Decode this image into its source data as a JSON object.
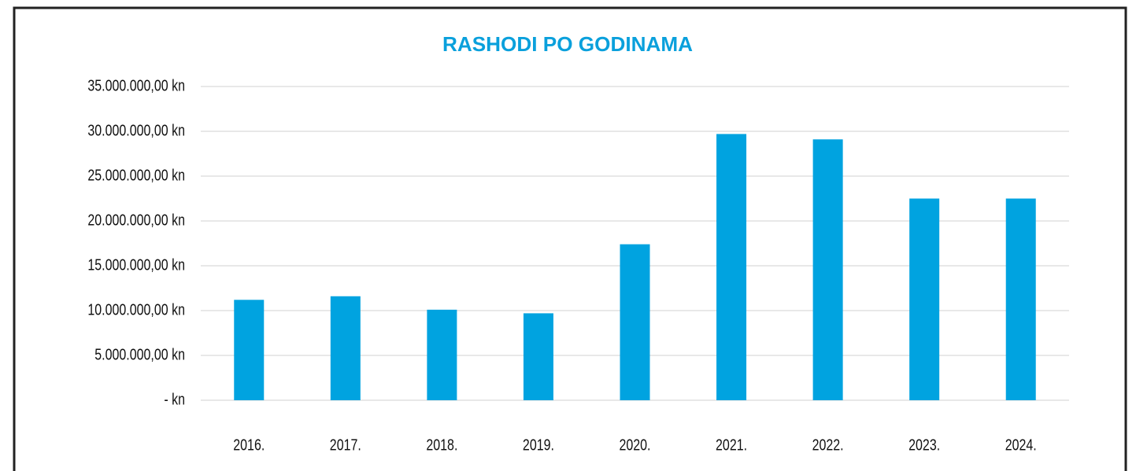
{
  "chart_data": {
    "type": "bar",
    "title": "RASHODI PO GODINAMA",
    "categories": [
      "2016.",
      "2017.",
      "2018.",
      "2019.",
      "2020.",
      "2021.",
      "2022.",
      "2023.",
      "2024."
    ],
    "values": [
      11200000,
      11600000,
      10100000,
      9700000,
      17400000,
      29700000,
      29100000,
      22500000,
      22500000
    ],
    "color": "#00a3e0",
    "ylim": [
      0,
      35000000
    ],
    "yticks": [
      {
        "value": 0,
        "label": "- kn"
      },
      {
        "value": 5000000,
        "label": "5.000.000,00 kn"
      },
      {
        "value": 10000000,
        "label": "10.000.000,00 kn"
      },
      {
        "value": 15000000,
        "label": "15.000.000,00 kn"
      },
      {
        "value": 20000000,
        "label": "20.000.000,00 kn"
      },
      {
        "value": 25000000,
        "label": "25.000.000,00 kn"
      },
      {
        "value": 30000000,
        "label": "30.000.000,00 kn"
      },
      {
        "value": 35000000,
        "label": "35.000.000,00 kn"
      }
    ],
    "grid": true
  }
}
